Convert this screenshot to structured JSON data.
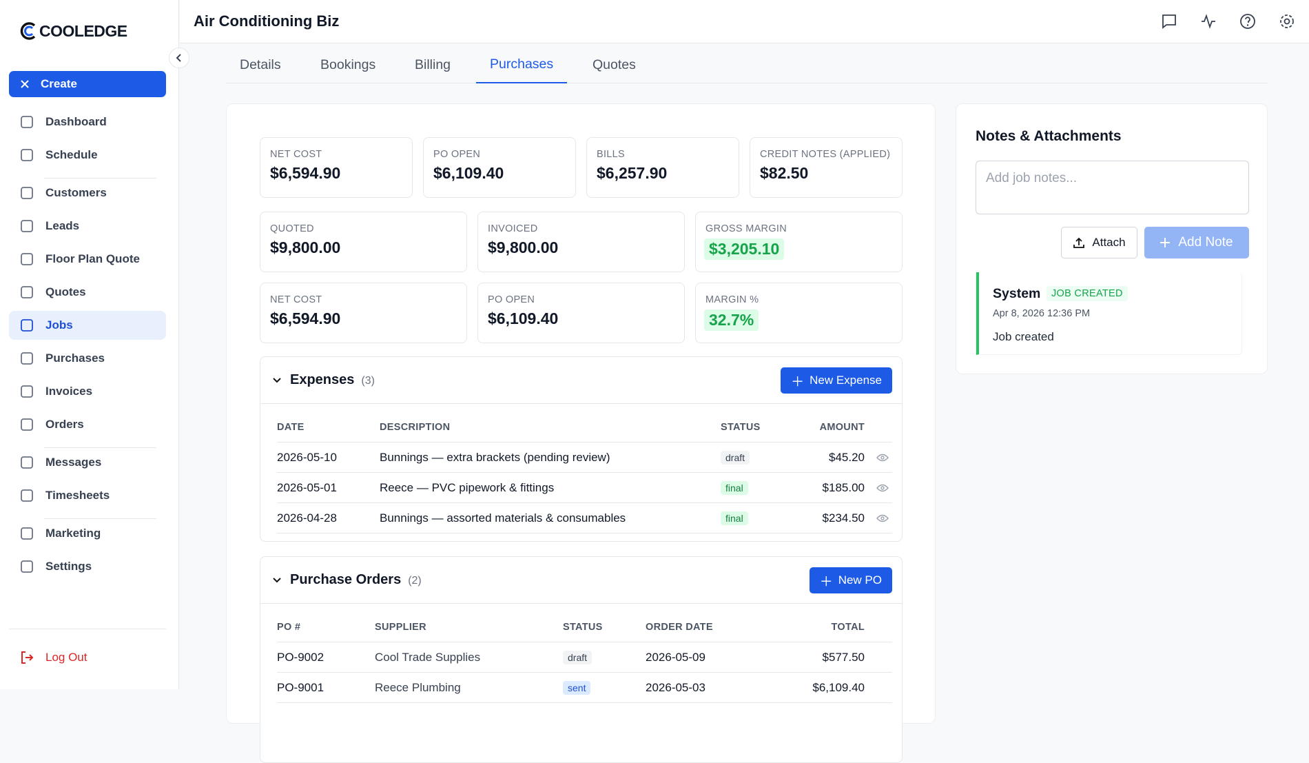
{
  "brand": "COOLEDGE",
  "sidebar": {
    "create": "Create",
    "groups": [
      [
        "Dashboard",
        "Schedule"
      ],
      [
        "Customers",
        "Leads",
        "Floor Plan Quote",
        "Quotes",
        "Jobs",
        "Purchases",
        "Invoices",
        "Orders"
      ],
      [
        "Messages",
        "Timesheets"
      ],
      [
        "Marketing",
        "Settings"
      ]
    ],
    "active": "Jobs",
    "logout": "Log Out"
  },
  "header": {
    "title": "Air Conditioning Biz"
  },
  "tabs": {
    "items": [
      "Details",
      "Bookings",
      "Billing",
      "Purchases",
      "Quotes"
    ],
    "active": "Purchases"
  },
  "stats": [
    [
      {
        "label": "NET COST",
        "value": "$6,594.90"
      },
      {
        "label": "PO OPEN",
        "value": "$6,109.40"
      },
      {
        "label": "BILLS",
        "value": "$6,257.90"
      },
      {
        "label": "CREDIT NOTES (APPLIED)",
        "value": "$82.50"
      }
    ],
    [
      {
        "label": "QUOTED",
        "value": "$9,800.00"
      },
      {
        "label": "INVOICED",
        "value": "$9,800.00"
      },
      {
        "label": "GROSS MARGIN",
        "value": "$3,205.10",
        "highlight": true
      }
    ],
    [
      {
        "label": "NET COST",
        "value": "$6,594.90"
      },
      {
        "label": "PO OPEN",
        "value": "$6,109.40"
      },
      {
        "label": "MARGIN %",
        "value": "32.7%",
        "highlight": true
      }
    ]
  ],
  "expenses": {
    "title": "Expenses",
    "count": "(3)",
    "button": "New Expense",
    "columns": [
      "DATE",
      "DESCRIPTION",
      "STATUS",
      "AMOUNT"
    ],
    "rows": [
      [
        "2026-05-10",
        "Bunnings — extra brackets (pending review)",
        "draft",
        "$45.20"
      ],
      [
        "2026-05-01",
        "Reece — PVC pipework & fittings",
        "final",
        "$185.00"
      ],
      [
        "2026-04-28",
        "Bunnings — assorted materials & consumables",
        "final",
        "$234.50"
      ]
    ]
  },
  "purchase_orders": {
    "title": "Purchase Orders",
    "count": "(2)",
    "button": "New PO",
    "columns": [
      "PO #",
      "SUPPLIER",
      "STATUS",
      "ORDER DATE",
      "TOTAL"
    ],
    "rows": [
      [
        "PO-9002",
        "Cool Trade Supplies",
        "draft",
        "2026-05-09",
        "$577.50"
      ],
      [
        "PO-9001",
        "Reece Plumbing",
        "sent",
        "2026-05-03",
        "$6,109.40"
      ]
    ]
  },
  "notes": {
    "title": "Notes & Attachments",
    "placeholder": "Add job notes...",
    "attach": "Attach",
    "add_note": "Add Note",
    "entries": [
      {
        "author": "System",
        "badge": "JOB CREATED",
        "date": "Apr 8, 2026 12:36 PM",
        "text": "Job created"
      }
    ]
  }
}
